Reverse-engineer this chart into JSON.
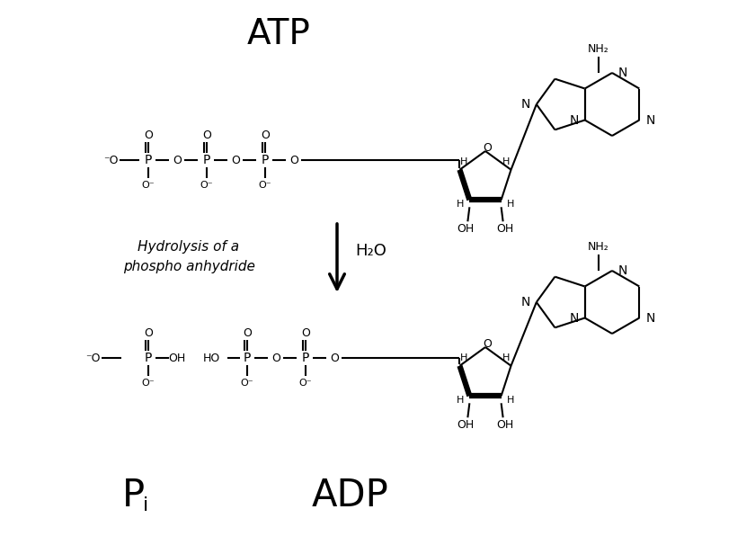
{
  "background_color": "#ffffff",
  "atp_label": "ATP",
  "adp_label": "ADP",
  "pi_label": "Pi",
  "arrow_label": "H₂O",
  "reaction_label_line1": "Hydrolysis of a",
  "reaction_label_line2": "phospho anhydride",
  "line_color": "#000000",
  "text_color": "#000000",
  "fig_width": 8.4,
  "fig_height": 6.06,
  "dpi": 100
}
